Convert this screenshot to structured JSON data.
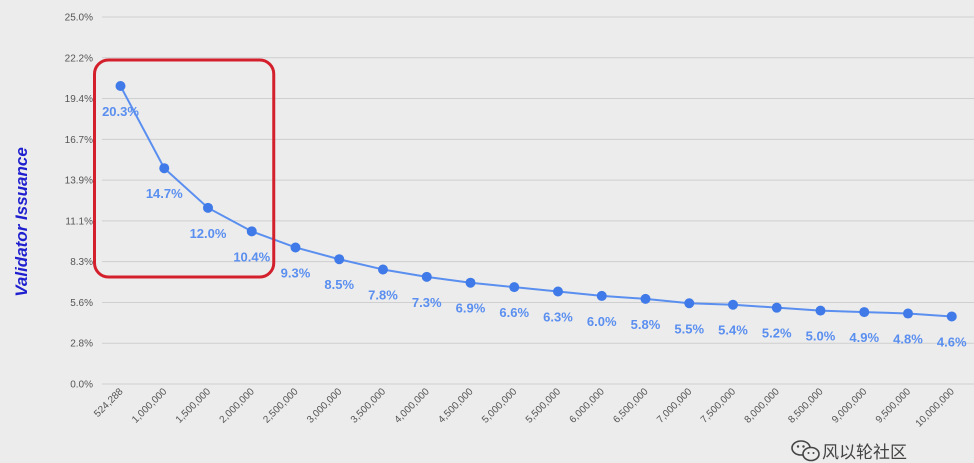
{
  "chart_data": {
    "type": "line",
    "xlabel": "",
    "ylabel": "Validator Issuance",
    "ylim": [
      0,
      25.0
    ],
    "y_ticks": [
      "0.0%",
      "2.8%",
      "5.6%",
      "8.3%",
      "11.1%",
      "13.9%",
      "16.7%",
      "19.4%",
      "22.2%",
      "25.0%"
    ],
    "grid": true,
    "categories": [
      "524,288",
      "1,000,000",
      "1,500,000",
      "2,000,000",
      "2,500,000",
      "3,000,000",
      "3,500,000",
      "4,000,000",
      "4,500,000",
      "5,000,000",
      "5,500,000",
      "6,000,000",
      "6,500,000",
      "7,000,000",
      "7,500,000",
      "8,000,000",
      "8,500,000",
      "9,000,000",
      "9,500,000",
      "10,000,000"
    ],
    "series": [
      {
        "values": [
          20.3,
          14.7,
          12.0,
          10.4,
          9.3,
          8.5,
          7.8,
          7.3,
          6.9,
          6.6,
          6.3,
          6.0,
          5.8,
          5.5,
          5.4,
          5.2,
          5.0,
          4.9,
          4.8,
          4.6
        ],
        "labels": [
          "20.3%",
          "14.7%",
          "12.0%",
          "10.4%",
          "9.3%",
          "8.5%",
          "7.8%",
          "7.3%",
          "6.9%",
          "6.6%",
          "6.3%",
          "6.0%",
          "5.8%",
          "5.5%",
          "5.4%",
          "5.2%",
          "5.0%",
          "4.9%",
          "4.8%",
          "4.6%"
        ]
      }
    ],
    "highlight": {
      "from_index": 0,
      "to_index": 3,
      "color": "#d4202c"
    }
  },
  "colors": {
    "line": "#5a8ff0",
    "marker": "#3f7ae8",
    "label": "#5a8ff0",
    "ylabel": "#1f1fd0",
    "grid": "#cfcfcf",
    "highlight": "#d4202c"
  },
  "watermark": {
    "icon": "wechat-icon",
    "text": "风以轮社区"
  }
}
